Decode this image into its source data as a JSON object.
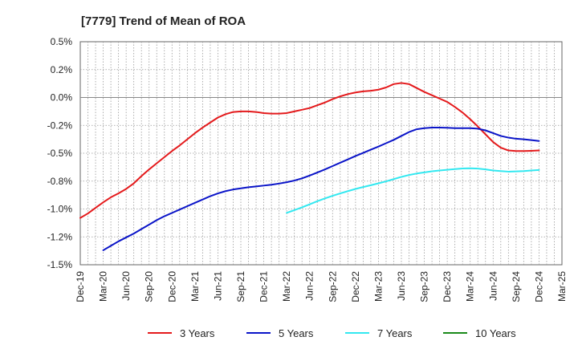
{
  "chart_data": {
    "type": "line",
    "title": "[7779]  Trend of Mean of ROA",
    "xlabel": "",
    "ylabel": "",
    "x_ticks": [
      "Dec-19",
      "Mar-20",
      "Jun-20",
      "Sep-20",
      "Dec-20",
      "Mar-21",
      "Jun-21",
      "Sep-21",
      "Dec-21",
      "Mar-22",
      "Jun-22",
      "Sep-22",
      "Dec-22",
      "Mar-23",
      "Jun-23",
      "Sep-23",
      "Dec-23",
      "Mar-24",
      "Jun-24",
      "Sep-24",
      "Dec-24",
      "Mar-25"
    ],
    "y_ticks": [
      "0.5%",
      "0.2%",
      "0.0%",
      "-0.2%",
      "-0.5%",
      "-0.8%",
      "-1.0%",
      "-1.2%",
      "-1.5%"
    ],
    "y_tick_values": [
      0.5,
      0.25,
      0.0,
      -0.25,
      -0.5,
      -0.75,
      -1.0,
      -1.25,
      -1.5
    ],
    "ylim": [
      -1.5,
      0.5
    ],
    "grid": true,
    "legend_position": "bottom",
    "series": [
      {
        "name": "3 Years",
        "color": "#e41a1c",
        "x": [
          "Dec-19",
          "Jan-20",
          "Feb-20",
          "Mar-20",
          "Apr-20",
          "May-20",
          "Jun-20",
          "Jul-20",
          "Aug-20",
          "Sep-20",
          "Oct-20",
          "Nov-20",
          "Dec-20",
          "Jan-21",
          "Feb-21",
          "Mar-21",
          "Apr-21",
          "May-21",
          "Jun-21",
          "Jul-21",
          "Aug-21",
          "Sep-21",
          "Oct-21",
          "Nov-21",
          "Dec-21",
          "Jan-22",
          "Feb-22",
          "Mar-22",
          "Apr-22",
          "May-22",
          "Jun-22",
          "Jul-22",
          "Aug-22",
          "Sep-22",
          "Oct-22",
          "Nov-22",
          "Dec-22",
          "Jan-23",
          "Feb-23",
          "Mar-23",
          "Apr-23",
          "May-23",
          "Jun-23",
          "Jul-23",
          "Aug-23",
          "Sep-23",
          "Oct-23",
          "Nov-23",
          "Dec-23",
          "Jan-24",
          "Feb-24",
          "Mar-24",
          "Apr-24",
          "May-24",
          "Jun-24",
          "Jul-24",
          "Aug-24",
          "Sep-24",
          "Oct-24",
          "Nov-24",
          "Dec-24"
        ],
        "values": [
          -1.08,
          -1.04,
          -0.99,
          -0.94,
          -0.895,
          -0.86,
          -0.82,
          -0.77,
          -0.705,
          -0.645,
          -0.59,
          -0.535,
          -0.48,
          -0.43,
          -0.375,
          -0.32,
          -0.27,
          -0.225,
          -0.18,
          -0.15,
          -0.13,
          -0.125,
          -0.125,
          -0.13,
          -0.14,
          -0.145,
          -0.145,
          -0.14,
          -0.125,
          -0.11,
          -0.095,
          -0.07,
          -0.045,
          -0.015,
          0.01,
          0.03,
          0.045,
          0.055,
          0.06,
          0.07,
          0.09,
          0.12,
          0.13,
          0.12,
          0.085,
          0.05,
          0.02,
          -0.01,
          -0.04,
          -0.085,
          -0.135,
          -0.195,
          -0.26,
          -0.33,
          -0.4,
          -0.45,
          -0.475,
          -0.48,
          -0.48,
          -0.478,
          -0.475
        ]
      },
      {
        "name": "5 Years",
        "color": "#0a14c8",
        "x": [
          "Mar-20",
          "Apr-20",
          "May-20",
          "Jun-20",
          "Jul-20",
          "Aug-20",
          "Sep-20",
          "Oct-20",
          "Nov-20",
          "Dec-20",
          "Jan-21",
          "Feb-21",
          "Mar-21",
          "Apr-21",
          "May-21",
          "Jun-21",
          "Jul-21",
          "Aug-21",
          "Sep-21",
          "Oct-21",
          "Nov-21",
          "Dec-21",
          "Jan-22",
          "Feb-22",
          "Mar-22",
          "Apr-22",
          "May-22",
          "Jun-22",
          "Jul-22",
          "Aug-22",
          "Sep-22",
          "Oct-22",
          "Nov-22",
          "Dec-22",
          "Jan-23",
          "Feb-23",
          "Mar-23",
          "Apr-23",
          "May-23",
          "Jun-23",
          "Jul-23",
          "Aug-23",
          "Sep-23",
          "Oct-23",
          "Nov-23",
          "Dec-23",
          "Jan-24",
          "Feb-24",
          "Mar-24",
          "Apr-24",
          "May-24",
          "Jun-24",
          "Jul-24",
          "Aug-24",
          "Sep-24",
          "Oct-24",
          "Nov-24",
          "Dec-24"
        ],
        "values": [
          -1.37,
          -1.33,
          -1.29,
          -1.255,
          -1.22,
          -1.18,
          -1.14,
          -1.1,
          -1.065,
          -1.035,
          -1.005,
          -0.975,
          -0.945,
          -0.915,
          -0.885,
          -0.86,
          -0.84,
          -0.825,
          -0.815,
          -0.805,
          -0.798,
          -0.79,
          -0.782,
          -0.772,
          -0.76,
          -0.745,
          -0.725,
          -0.7,
          -0.673,
          -0.645,
          -0.615,
          -0.585,
          -0.555,
          -0.525,
          -0.497,
          -0.468,
          -0.44,
          -0.41,
          -0.38,
          -0.345,
          -0.31,
          -0.285,
          -0.275,
          -0.27,
          -0.27,
          -0.272,
          -0.275,
          -0.275,
          -0.275,
          -0.28,
          -0.295,
          -0.32,
          -0.345,
          -0.36,
          -0.37,
          -0.375,
          -0.382,
          -0.39
        ]
      },
      {
        "name": "7 Years",
        "color": "#33e8f0",
        "x": [
          "Mar-22",
          "Apr-22",
          "May-22",
          "Jun-22",
          "Jul-22",
          "Aug-22",
          "Sep-22",
          "Oct-22",
          "Nov-22",
          "Dec-22",
          "Jan-23",
          "Feb-23",
          "Mar-23",
          "Apr-23",
          "May-23",
          "Jun-23",
          "Jul-23",
          "Aug-23",
          "Sep-23",
          "Oct-23",
          "Nov-23",
          "Dec-23",
          "Jan-24",
          "Feb-24",
          "Mar-24",
          "Apr-24",
          "May-24",
          "Jun-24",
          "Jul-24",
          "Aug-24",
          "Sep-24",
          "Oct-24",
          "Nov-24",
          "Dec-24"
        ],
        "values": [
          -1.035,
          -1.01,
          -0.985,
          -0.958,
          -0.93,
          -0.905,
          -0.882,
          -0.86,
          -0.84,
          -0.82,
          -0.803,
          -0.787,
          -0.77,
          -0.752,
          -0.732,
          -0.712,
          -0.695,
          -0.682,
          -0.672,
          -0.662,
          -0.655,
          -0.648,
          -0.642,
          -0.637,
          -0.635,
          -0.638,
          -0.645,
          -0.655,
          -0.66,
          -0.665,
          -0.663,
          -0.66,
          -0.655,
          -0.65
        ]
      },
      {
        "name": "10 Years",
        "color": "#1a8a1a",
        "x": [],
        "values": []
      }
    ]
  }
}
